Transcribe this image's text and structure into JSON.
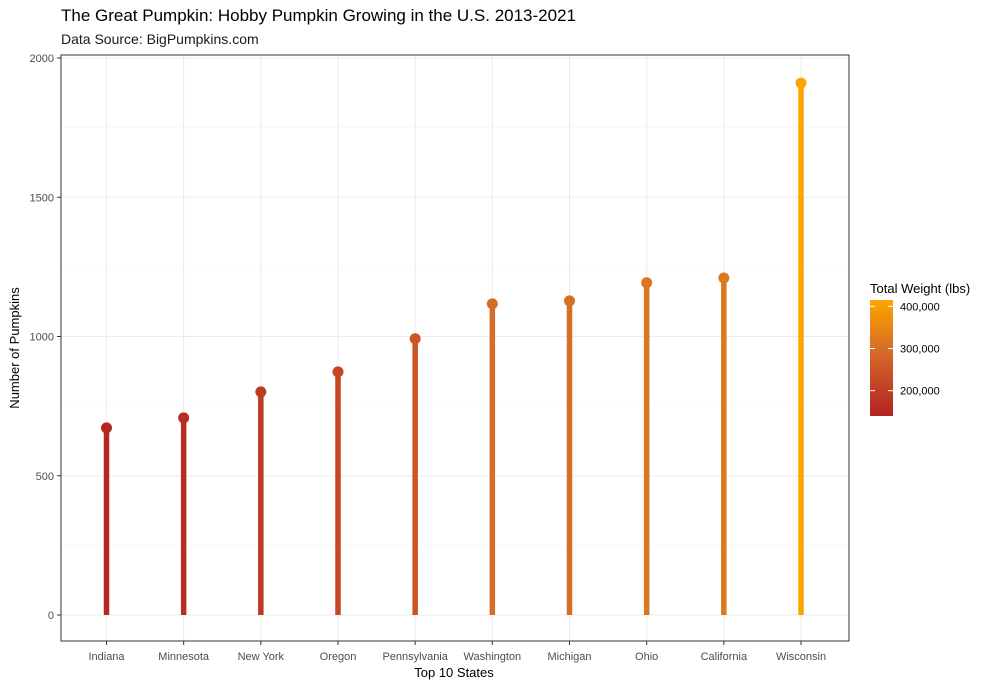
{
  "chart_data": {
    "type": "lollipop",
    "title": "The Great Pumpkin: Hobby Pumpkin Growing in the U.S. 2013-2021",
    "subtitle": "Data Source: BigPumpkins.com",
    "xlabel": "Top 10 States",
    "ylabel": "Number of Pumpkins",
    "ylim": [
      -60,
      2000
    ],
    "yticks": [
      0,
      500,
      1000,
      1500,
      2000
    ],
    "categories": [
      "Indiana",
      "Minnesota",
      "New York",
      "Oregon",
      "Pennsylvania",
      "Washington",
      "Michigan",
      "Ohio",
      "California",
      "Wisconsin"
    ],
    "values": [
      672,
      708,
      801,
      873,
      992,
      1117,
      1128,
      1193,
      1210,
      1910
    ],
    "total_weight_lbs": [
      150000,
      165000,
      190000,
      215000,
      245000,
      295000,
      300000,
      315000,
      320000,
      410000
    ],
    "grid": true,
    "legend": {
      "title": "Total Weight (lbs)",
      "position": "right",
      "labels": [
        "400,000",
        "300,000",
        "200,000"
      ],
      "label_values": [
        400000,
        300000,
        200000
      ],
      "range": [
        140000,
        415000
      ],
      "colors": {
        "low": "#b22222",
        "mid": "#d46a28",
        "high": "#ffa500"
      }
    }
  }
}
